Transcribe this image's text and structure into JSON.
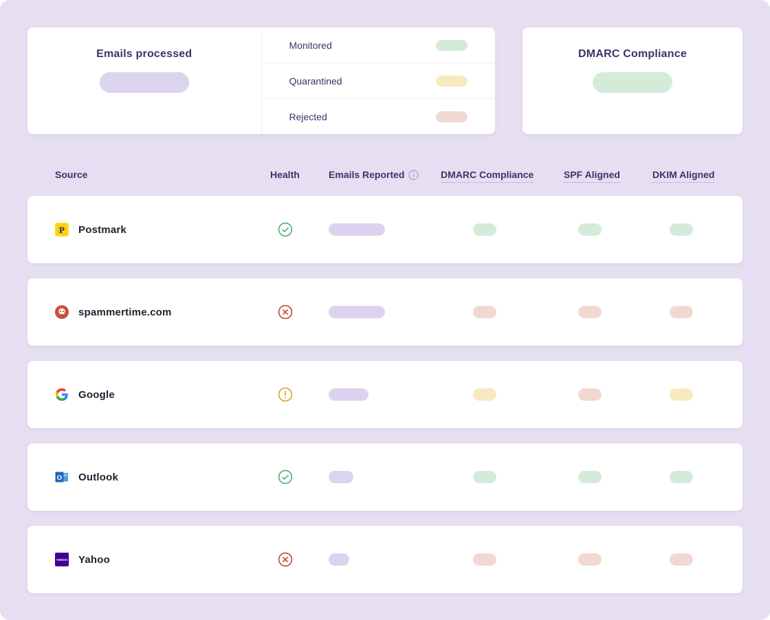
{
  "summary": {
    "emails_processed": {
      "title": "Emails processed",
      "value_pill_color": "#DCD3EE"
    },
    "legend": [
      {
        "label": "Monitored",
        "status": "pass"
      },
      {
        "label": "Quarantined",
        "status": "warn"
      },
      {
        "label": "Rejected",
        "status": "fail"
      }
    ],
    "dmarc_compliance": {
      "title": "DMARC Compliance",
      "value_pill_color": "#D4EBDA"
    }
  },
  "table": {
    "columns": [
      {
        "label": "Source",
        "underline": false
      },
      {
        "label": "Health",
        "underline": false
      },
      {
        "label": "Emails Reported",
        "underline": false,
        "info_icon": "info-icon"
      },
      {
        "label": "DMARC Compliance",
        "underline": true
      },
      {
        "label": "SPF Aligned",
        "underline": true
      },
      {
        "label": "DKIM Aligned",
        "underline": true
      }
    ],
    "status_colors": {
      "pass": "#D4EBDA",
      "warn": "#F8EAC0",
      "fail": "#F1D9D2"
    },
    "rows": [
      {
        "source": "Postmark",
        "icon": "postmark",
        "health": "pass",
        "emails_reported_pill_width": 82,
        "dmarc": "pass",
        "spf": "pass",
        "dkim": "pass"
      },
      {
        "source": "spammertime.com",
        "icon": "skull",
        "health": "fail",
        "emails_reported_pill_width": 82,
        "dmarc": "fail",
        "spf": "fail",
        "dkim": "fail"
      },
      {
        "source": "Google",
        "icon": "google",
        "health": "warn",
        "emails_reported_pill_width": 58,
        "dmarc": "warn",
        "spf": "fail",
        "dkim": "warn"
      },
      {
        "source": "Outlook",
        "icon": "outlook",
        "health": "pass",
        "emails_reported_pill_width": 36,
        "dmarc": "pass",
        "spf": "pass",
        "dkim": "pass"
      },
      {
        "source": "Yahoo",
        "icon": "yahoo",
        "health": "fail",
        "emails_reported_pill_width": 30,
        "dmarc": "fail",
        "spf": "fail",
        "dkim": "fail"
      }
    ]
  }
}
